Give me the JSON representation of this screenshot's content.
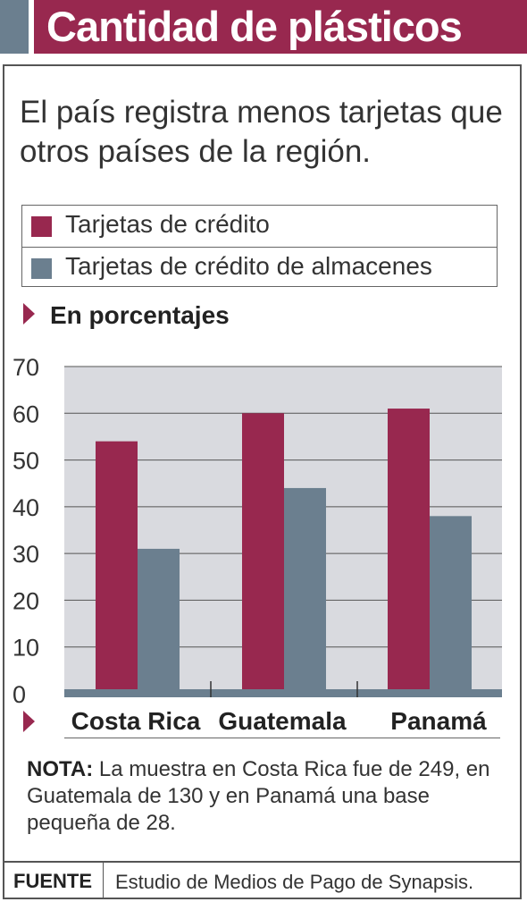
{
  "header": {
    "title": "Cantidad de plásticos"
  },
  "subtitle": "El país registra menos tarjetas que otros países de la región.",
  "unit_label": "En porcentajes",
  "note": {
    "label": "NOTA:",
    "text": "La muestra en Costa Rica fue de 249, en Guatemala de 130 y en Panamá una base pequeña de 28."
  },
  "source": {
    "label": "FUENTE",
    "text": "Estudio de Medios de Pago de Synapsis."
  },
  "colors": {
    "credit": "#98284f",
    "store": "#6b7f8f",
    "plot_bg": "#d9dadf",
    "accent": "#98284f"
  },
  "chart_data": {
    "type": "bar",
    "title": "Cantidad de plásticos",
    "categories": [
      "Costa Rica",
      "Guatemala",
      "Panamá"
    ],
    "series": [
      {
        "name": "Tarjetas de crédito",
        "values": [
          54,
          60,
          61
        ]
      },
      {
        "name": "Tarjetas de crédito de almacenes",
        "values": [
          31,
          44,
          38
        ]
      }
    ],
    "yticks": [
      "0",
      "10",
      "20",
      "30",
      "40",
      "50",
      "60",
      "70"
    ],
    "ylim": [
      0,
      70
    ],
    "xlabel": "",
    "ylabel": "",
    "grid": true,
    "legend": "top"
  }
}
